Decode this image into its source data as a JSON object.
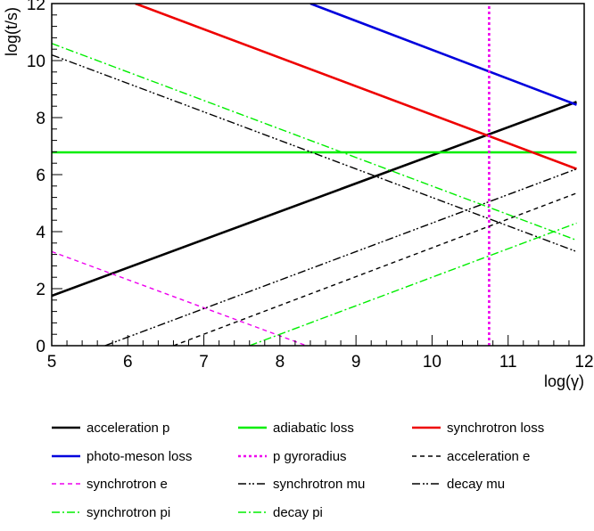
{
  "chart_data": {
    "type": "line",
    "title": "",
    "xlabel": "log(γ)",
    "ylabel": "log(t/s)",
    "xlim": [
      5,
      12
    ],
    "ylim": [
      0,
      12
    ],
    "x_ticks": [
      "5",
      "6",
      "7",
      "8",
      "9",
      "10",
      "11",
      "12"
    ],
    "y_ticks": [
      "0",
      "2",
      "4",
      "6",
      "8",
      "10",
      "12"
    ],
    "grid": false,
    "legend_position": "bottom",
    "series": [
      {
        "name": "acceleration p",
        "color": "#000000",
        "style": "solid",
        "weight": "thick",
        "x": [
          5.0,
          11.9
        ],
        "y": [
          1.75,
          8.55
        ]
      },
      {
        "name": "adiabatic loss",
        "color": "#00ee00",
        "style": "solid",
        "weight": "thick",
        "x": [
          5.0,
          11.9
        ],
        "y": [
          6.78,
          6.78
        ]
      },
      {
        "name": "synchrotron loss",
        "color": "#ee0000",
        "style": "solid",
        "weight": "thick",
        "x": [
          6.1,
          11.9
        ],
        "y": [
          12.0,
          6.2
        ]
      },
      {
        "name": "photo-meson loss",
        "color": "#0000dd",
        "style": "solid",
        "weight": "thick",
        "x": [
          8.4,
          11.9
        ],
        "y": [
          12.0,
          8.45
        ]
      },
      {
        "name": "p gyroradius",
        "color": "#ee00ee",
        "style": "dotted",
        "weight": "thick",
        "x": [
          10.75,
          10.75
        ],
        "y": [
          0.0,
          12.0
        ]
      },
      {
        "name": "acceleration e",
        "color": "#000000",
        "style": "dashed",
        "weight": "thin",
        "x": [
          6.6,
          11.9
        ],
        "y": [
          0.0,
          5.35
        ]
      },
      {
        "name": "synchrotron e",
        "color": "#ee00ee",
        "style": "dashed",
        "weight": "thin",
        "x": [
          5.0,
          8.35
        ],
        "y": [
          3.3,
          0.0
        ]
      },
      {
        "name": "synchrotron mu",
        "color": "#000000",
        "style": "dashdotdot",
        "weight": "thin",
        "x": [
          5.0,
          11.9
        ],
        "y": [
          10.2,
          3.3
        ]
      },
      {
        "name": "decay mu",
        "color": "#000000",
        "style": "dashdotdot",
        "weight": "thin",
        "x": [
          5.7,
          11.9
        ],
        "y": [
          0.0,
          6.2
        ]
      },
      {
        "name": "synchrotron pi",
        "color": "#00ee00",
        "style": "dashdot",
        "weight": "thin",
        "x": [
          5.0,
          11.9
        ],
        "y": [
          10.6,
          3.7
        ]
      },
      {
        "name": "decay pi",
        "color": "#00ee00",
        "style": "dashdot",
        "weight": "thin",
        "x": [
          7.6,
          11.9
        ],
        "y": [
          0.0,
          4.3
        ]
      }
    ]
  }
}
